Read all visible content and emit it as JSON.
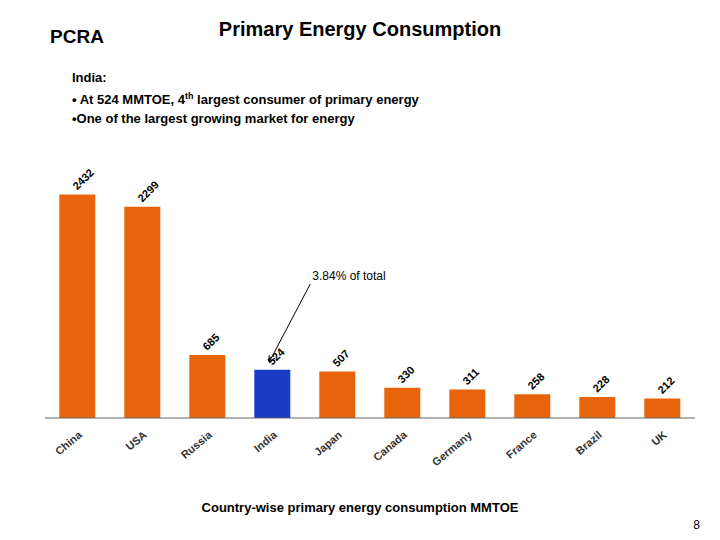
{
  "chart_data": {
    "type": "bar",
    "title": "Primary Energy Consumption",
    "subtitle": [
      "India:",
      "• At 524 MMTOE, 4",
      "th",
      " largest consumer of primary energy",
      "•One of the largest growing market for energy"
    ],
    "xlabel": "Country-wise primary energy consumption MMTOE",
    "categories": [
      "China",
      "USA",
      "Russia",
      "India",
      "Japan",
      "Canada",
      "Germany",
      "France",
      "Brazil",
      "UK"
    ],
    "values": [
      2432,
      2299,
      685,
      524,
      507,
      330,
      311,
      258,
      228,
      212
    ],
    "colors": [
      "#E8640A",
      "#E8640A",
      "#E8640A",
      "#1A3AC8",
      "#E8640A",
      "#E8640A",
      "#E8640A",
      "#E8640A",
      "#E8640A",
      "#E8640A"
    ],
    "ylim": [
      0,
      2700
    ],
    "data_labels": true,
    "tick_labels": "x",
    "grid": false,
    "annotations": [
      {
        "text": "3.84% of total",
        "category": "India"
      }
    ],
    "logo_text": "PCRA",
    "page_number": "8"
  }
}
